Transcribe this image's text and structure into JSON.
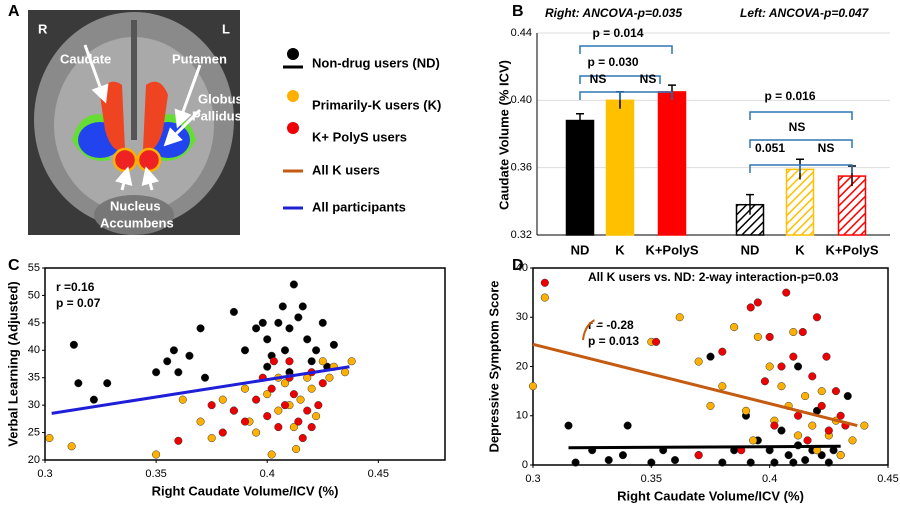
{
  "panel_a": {
    "letter": "A",
    "side_right": "R",
    "side_left": "L",
    "caudate": "Caudate",
    "putamen": "Putamen",
    "globus": "Globus",
    "pallidus": "Pallidus",
    "nucleus": "Nucleus",
    "accumbens": "Accumbens"
  },
  "chart_data": [
    {
      "type": "bar",
      "panel": "B",
      "ylabel": "Caudate Volume  (% ICV)",
      "notes": [
        "Right: ANCOVA-p=0.035",
        "Left: ANCOVA-p=0.047"
      ],
      "categories": [
        "ND",
        "K",
        "K+PolyS",
        "ND",
        "K",
        "K+PolyS"
      ],
      "values": [
        0.388,
        0.4,
        0.405,
        0.338,
        0.359,
        0.355
      ],
      "errors": [
        0.004,
        0.005,
        0.004,
        0.006,
        0.006,
        0.006
      ],
      "colors": [
        "#000000",
        "#ffc000",
        "#ff0000",
        "#000000",
        "#ffc000",
        "#ff0000"
      ],
      "hatched": [
        false,
        false,
        false,
        true,
        true,
        true
      ],
      "annotations": [
        "p = 0.014",
        "p = 0.030",
        "NS",
        "NS",
        "p = 0.016",
        "NS",
        "0.051",
        "NS"
      ],
      "ylim": [
        0.32,
        0.44
      ],
      "yticks": [
        0.32,
        0.36,
        {
          "value": 0.4,
          "label": "0.40"
        },
        0.44
      ],
      "grid": true
    },
    {
      "type": "scatter",
      "panel": "C",
      "xlabel": "Right Caudate Volume/ICV (%)",
      "ylabel": "Verbal Learning (Adjusted)",
      "annotations": [
        "r =0.16",
        "p = 0.07"
      ],
      "xlim": [
        0.3,
        0.48
      ],
      "xticks": [
        0.3,
        0.35,
        0.4,
        0.45
      ],
      "ylim": [
        20,
        55
      ],
      "yticks": [
        20,
        25,
        30,
        35,
        40,
        45,
        50,
        55
      ],
      "series": [
        {
          "name": "Non-drug users (ND)",
          "color": "#000000",
          "x": [
            0.313,
            0.315,
            0.322,
            0.328,
            0.35,
            0.355,
            0.358,
            0.36,
            0.365,
            0.37,
            0.372,
            0.385,
            0.39,
            0.395,
            0.398,
            0.4,
            0.402,
            0.405,
            0.407,
            0.41,
            0.412,
            0.414,
            0.416,
            0.418,
            0.42,
            0.422,
            0.425,
            0.427,
            0.43,
            0.408,
            0.4,
            0.41
          ],
          "values": [
            41,
            34,
            31,
            34,
            36,
            38,
            40,
            36,
            39,
            44,
            35,
            47,
            40,
            44,
            45,
            42,
            39,
            45,
            48,
            44,
            52,
            46,
            48,
            42,
            38,
            40,
            45,
            37,
            41,
            40,
            37,
            36
          ]
        },
        {
          "name": "Primarily-K users (K)",
          "color": "#ffb000",
          "x": [
            0.302,
            0.312,
            0.35,
            0.362,
            0.37,
            0.375,
            0.38,
            0.385,
            0.39,
            0.392,
            0.395,
            0.4,
            0.402,
            0.405,
            0.408,
            0.41,
            0.412,
            0.415,
            0.418,
            0.42,
            0.422,
            0.425,
            0.428,
            0.43,
            0.435,
            0.438,
            0.413,
            0.405
          ],
          "values": [
            24,
            22.5,
            21,
            31,
            27,
            24,
            31,
            29,
            33,
            27,
            25,
            32,
            21,
            29,
            34,
            30,
            26,
            31,
            35,
            33,
            28,
            38,
            35,
            37,
            36,
            38,
            22,
            35
          ]
        },
        {
          "name": "K+ PolyS users",
          "color": "#ee0000",
          "x": [
            0.36,
            0.375,
            0.38,
            0.385,
            0.39,
            0.395,
            0.398,
            0.4,
            0.402,
            0.405,
            0.408,
            0.41,
            0.412,
            0.414,
            0.416,
            0.418,
            0.42,
            0.423,
            0.425,
            0.42,
            0.403,
            0.41
          ],
          "values": [
            23.5,
            30,
            25,
            29,
            27,
            31,
            35,
            28,
            33,
            26,
            30,
            35,
            32,
            27,
            24,
            29,
            36,
            30,
            34,
            26,
            38,
            38
          ]
        }
      ],
      "fits": [
        {
          "name": "All participants",
          "color": "#1f1fd8",
          "x": [
            0.303,
            0.437
          ],
          "values": [
            28.5,
            37
          ]
        }
      ]
    },
    {
      "type": "scatter",
      "panel": "D",
      "title": "All K users vs. ND: 2-way interaction-p=0.03",
      "xlabel": "Right Caudate Volume/ICV (%)",
      "ylabel": "Depressive Symptom Score",
      "annotations": [
        "r = -0.28",
        "p = 0.013"
      ],
      "xlim": [
        0.3,
        0.45
      ],
      "xticks": [
        0.3,
        0.35,
        0.4,
        0.45
      ],
      "ylim": [
        0,
        40
      ],
      "yticks": [
        0,
        10,
        20,
        30,
        40
      ],
      "series": [
        {
          "color": "#000000",
          "x": [
            0.315,
            0.318,
            0.325,
            0.332,
            0.338,
            0.34,
            0.35,
            0.355,
            0.36,
            0.37,
            0.375,
            0.38,
            0.385,
            0.39,
            0.392,
            0.395,
            0.4,
            0.402,
            0.405,
            0.408,
            0.41,
            0.412,
            0.415,
            0.418,
            0.42,
            0.422,
            0.425,
            0.427,
            0.43,
            0.433,
            0.412
          ],
          "values": [
            8,
            0.5,
            3,
            1,
            2,
            8,
            0.5,
            3,
            1,
            2,
            22,
            0.5,
            3,
            10,
            0.5,
            5,
            3,
            0.5,
            7,
            2,
            0.5,
            4,
            1,
            3,
            11,
            2,
            0.5,
            3,
            2,
            14,
            20
          ]
        },
        {
          "color": "#ffb000",
          "x": [
            0.3,
            0.305,
            0.35,
            0.362,
            0.37,
            0.375,
            0.38,
            0.385,
            0.39,
            0.393,
            0.395,
            0.4,
            0.402,
            0.405,
            0.408,
            0.41,
            0.412,
            0.415,
            0.418,
            0.42,
            0.422,
            0.425,
            0.428,
            0.43,
            0.435,
            0.44
          ],
          "values": [
            16,
            34,
            25,
            30,
            21,
            12,
            16,
            28,
            11,
            5,
            26,
            20,
            9,
            16,
            12,
            27,
            6,
            14,
            8,
            3,
            15,
            6,
            9,
            2,
            5,
            8
          ]
        },
        {
          "color": "#ee0000",
          "x": [
            0.305,
            0.352,
            0.37,
            0.38,
            0.388,
            0.392,
            0.395,
            0.398,
            0.4,
            0.402,
            0.405,
            0.407,
            0.41,
            0.412,
            0.414,
            0.416,
            0.418,
            0.42,
            0.422,
            0.425,
            0.428,
            0.43,
            0.424,
            0.432
          ],
          "values": [
            37,
            25,
            2,
            23,
            3,
            32,
            33,
            17,
            26,
            8,
            20,
            35,
            22,
            10,
            27,
            5,
            18,
            30,
            12,
            7,
            15,
            10,
            22,
            8
          ]
        }
      ],
      "fits": [
        {
          "name": "All K users",
          "color": "#c55a11",
          "x": [
            0.3,
            0.437
          ],
          "values": [
            24.5,
            8
          ]
        },
        {
          "color": "#000000",
          "x": [
            0.315,
            0.43
          ],
          "values": [
            3.5,
            3.8
          ]
        }
      ]
    }
  ]
}
